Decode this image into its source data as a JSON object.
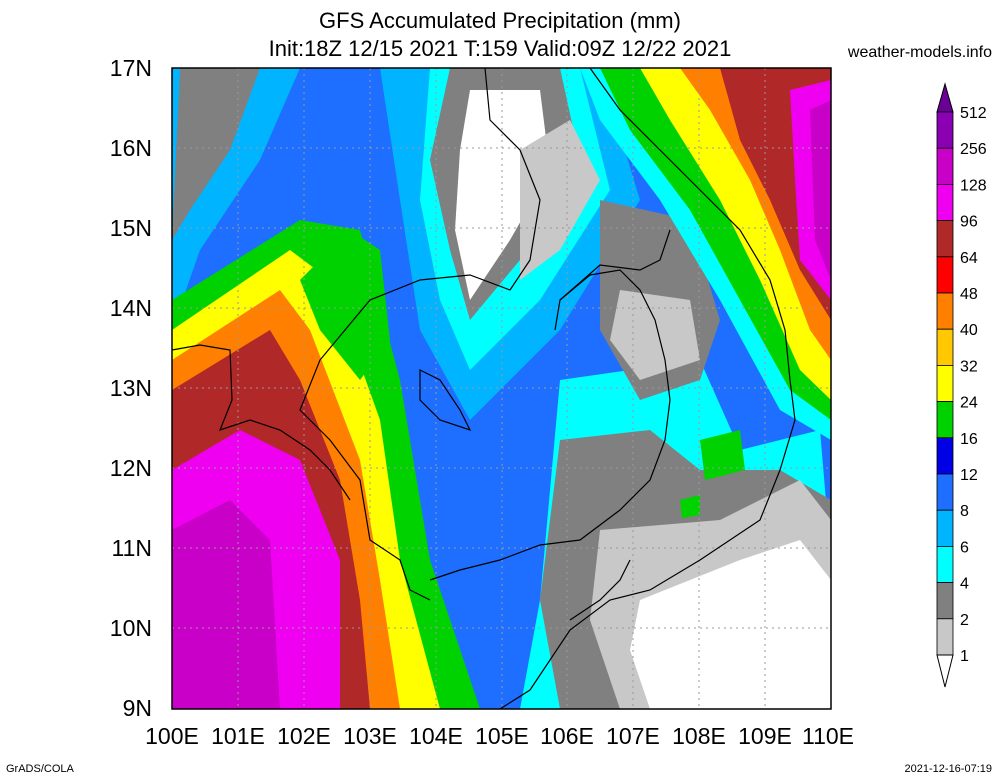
{
  "title": {
    "line1": "GFS Accumulated Precipitation (mm)",
    "line2": "Init:18Z 12/15 2021 T:159 Valid:09Z 12/22 2021"
  },
  "site": "weather-models.info",
  "footer": {
    "left": "GrADS/COLA",
    "right": "2021-12-16-07:19"
  },
  "map": {
    "lat_labels": [
      "17N",
      "16N",
      "15N",
      "14N",
      "13N",
      "12N",
      "11N",
      "10N",
      "9N"
    ],
    "lon_labels": [
      "100E",
      "101E",
      "102E",
      "103E",
      "104E",
      "105E",
      "106E",
      "107E",
      "108E",
      "109E",
      "110E"
    ]
  },
  "legend": {
    "labels": [
      "512",
      "256",
      "128",
      "96",
      "64",
      "48",
      "40",
      "32",
      "24",
      "16",
      "12",
      "8",
      "6",
      "4",
      "2",
      "1"
    ],
    "colors": [
      "#6a0095",
      "#8c00b4",
      "#c800c8",
      "#f000f0",
      "#b02828",
      "#ff0000",
      "#ff8000",
      "#ffc800",
      "#ffff00",
      "#00d200",
      "#0000e6",
      "#1e6eff",
      "#00b4ff",
      "#00ffff",
      "#808080",
      "#c8c8c8",
      "#ffffff"
    ]
  }
}
